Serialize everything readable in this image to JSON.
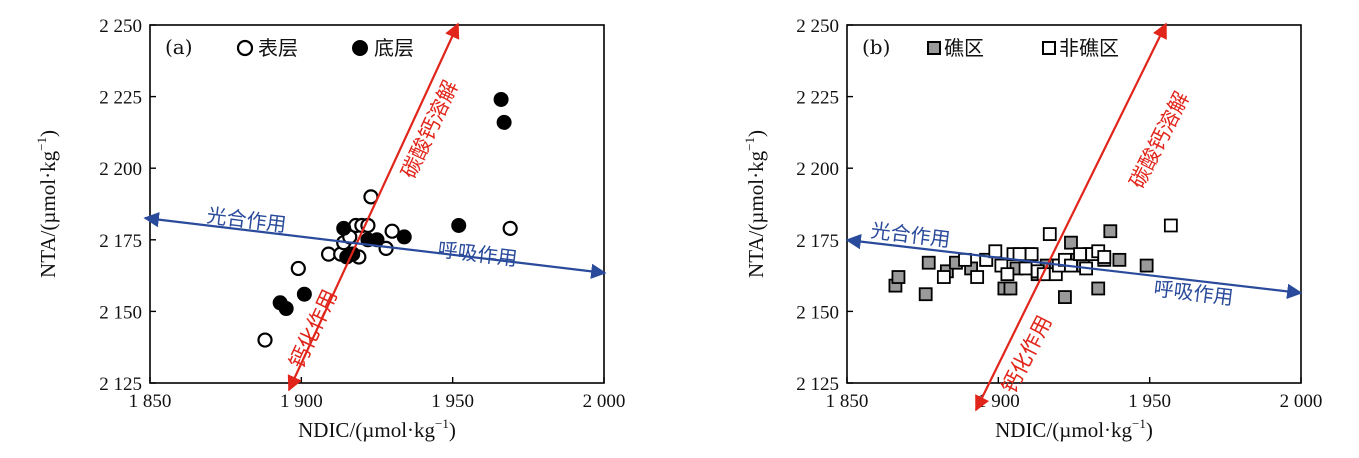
{
  "chart_data": [
    {
      "type": "scatter",
      "panel_label": "(a)",
      "xlabel": "NDIC/(µmol·kg",
      "xlabel_sup": "−1",
      "xlabel_end": ")",
      "ylabel": "NTA/(µmol·kg",
      "ylabel_sup": "−1",
      "ylabel_end": ")",
      "xlim": [
        1850,
        2000
      ],
      "ylim": [
        2125,
        2250
      ],
      "xticks": [
        1850,
        1900,
        1950,
        2000
      ],
      "xtick_labels": [
        "1 850",
        "1 900",
        "1 950",
        "2 000"
      ],
      "yticks": [
        2125,
        2150,
        2175,
        2200,
        2225,
        2250
      ],
      "ytick_labels": [
        "2 125",
        "2 150",
        "2 175",
        "2 200",
        "2 225",
        "2 250"
      ],
      "legend_position": "top-left",
      "series": [
        {
          "name": "表层",
          "marker": "open-circle",
          "x": [
            1888,
            1899,
            1909,
            1913,
            1914,
            1916,
            1917,
            1918,
            1919,
            1920,
            1922,
            1923,
            1928,
            1930,
            1969
          ],
          "y": [
            2140,
            2165,
            2170,
            2170,
            2174,
            2176,
            2170,
            2180,
            2169,
            2180,
            2180,
            2190,
            2172,
            2178,
            2179
          ]
        },
        {
          "name": "底层",
          "marker": "filled-circle",
          "x": [
            1893,
            1895,
            1901,
            1914,
            1915,
            1917,
            1922,
            1925,
            1934,
            1952,
            1966,
            1967
          ],
          "y": [
            2153,
            2151,
            2156,
            2179,
            2169,
            2170,
            2175,
            2175,
            2176,
            2180,
            2224,
            2216
          ]
        }
      ],
      "annotations": [
        {
          "text": "碳酸钙溶解",
          "color": "#e1251b"
        },
        {
          "text": "钙化作用",
          "color": "#e1251b"
        },
        {
          "text": "光合作用",
          "color": "#2a4b9b"
        },
        {
          "text": "呼吸作用",
          "color": "#2a4b9b"
        }
      ]
    },
    {
      "type": "scatter",
      "panel_label": "(b)",
      "xlabel": "NDIC/(µmol·kg",
      "xlabel_sup": "−1",
      "xlabel_end": ")",
      "ylabel": "NTA/(µmol·kg",
      "ylabel_sup": "−1",
      "ylabel_end": ")",
      "xlim": [
        1850,
        2000
      ],
      "ylim": [
        2125,
        2250
      ],
      "xticks": [
        1850,
        1900,
        1950,
        2000
      ],
      "xtick_labels": [
        "1 850",
        "1 900",
        "1 950",
        "2 000"
      ],
      "yticks": [
        2125,
        2150,
        2175,
        2200,
        2225,
        2250
      ],
      "ytick_labels": [
        "2 125",
        "2 150",
        "2 175",
        "2 200",
        "2 225",
        "2 250"
      ],
      "legend_position": "top-left",
      "series": [
        {
          "name": "礁区",
          "marker": "filled-square",
          "x": [
            1866,
            1867,
            1876,
            1877,
            1883,
            1886,
            1891,
            1896,
            1902,
            1904,
            1906,
            1910,
            1913,
            1916,
            1919,
            1922,
            1924,
            1926,
            1928,
            1930,
            1933,
            1935,
            1937,
            1940,
            1949
          ],
          "y": [
            2159,
            2162,
            2156,
            2167,
            2164,
            2167,
            2165,
            2168,
            2158,
            2158,
            2165,
            2170,
            2163,
            2166,
            2166,
            2155,
            2174,
            2168,
            2166,
            2170,
            2158,
            2168,
            2178,
            2168,
            2166
          ]
        },
        {
          "name": "非礁区",
          "marker": "open-square",
          "x": [
            1882,
            1889,
            1893,
            1896,
            1899,
            1901,
            1903,
            1905,
            1907,
            1909,
            1911,
            1913,
            1915,
            1917,
            1919,
            1920,
            1922,
            1924,
            1927,
            1929,
            1931,
            1933,
            1935,
            1957
          ],
          "y": [
            2162,
            2168,
            2162,
            2168,
            2171,
            2166,
            2163,
            2170,
            2170,
            2165,
            2170,
            2164,
            2163,
            2177,
            2163,
            2166,
            2168,
            2166,
            2170,
            2165,
            2170,
            2171,
            2169,
            2180
          ]
        }
      ],
      "annotations": [
        {
          "text": "碳酸钙溶解",
          "color": "#e1251b"
        },
        {
          "text": "钙化作用",
          "color": "#e1251b"
        },
        {
          "text": "光合作用",
          "color": "#2a4b9b"
        },
        {
          "text": "呼吸作用",
          "color": "#2a4b9b"
        }
      ]
    }
  ]
}
